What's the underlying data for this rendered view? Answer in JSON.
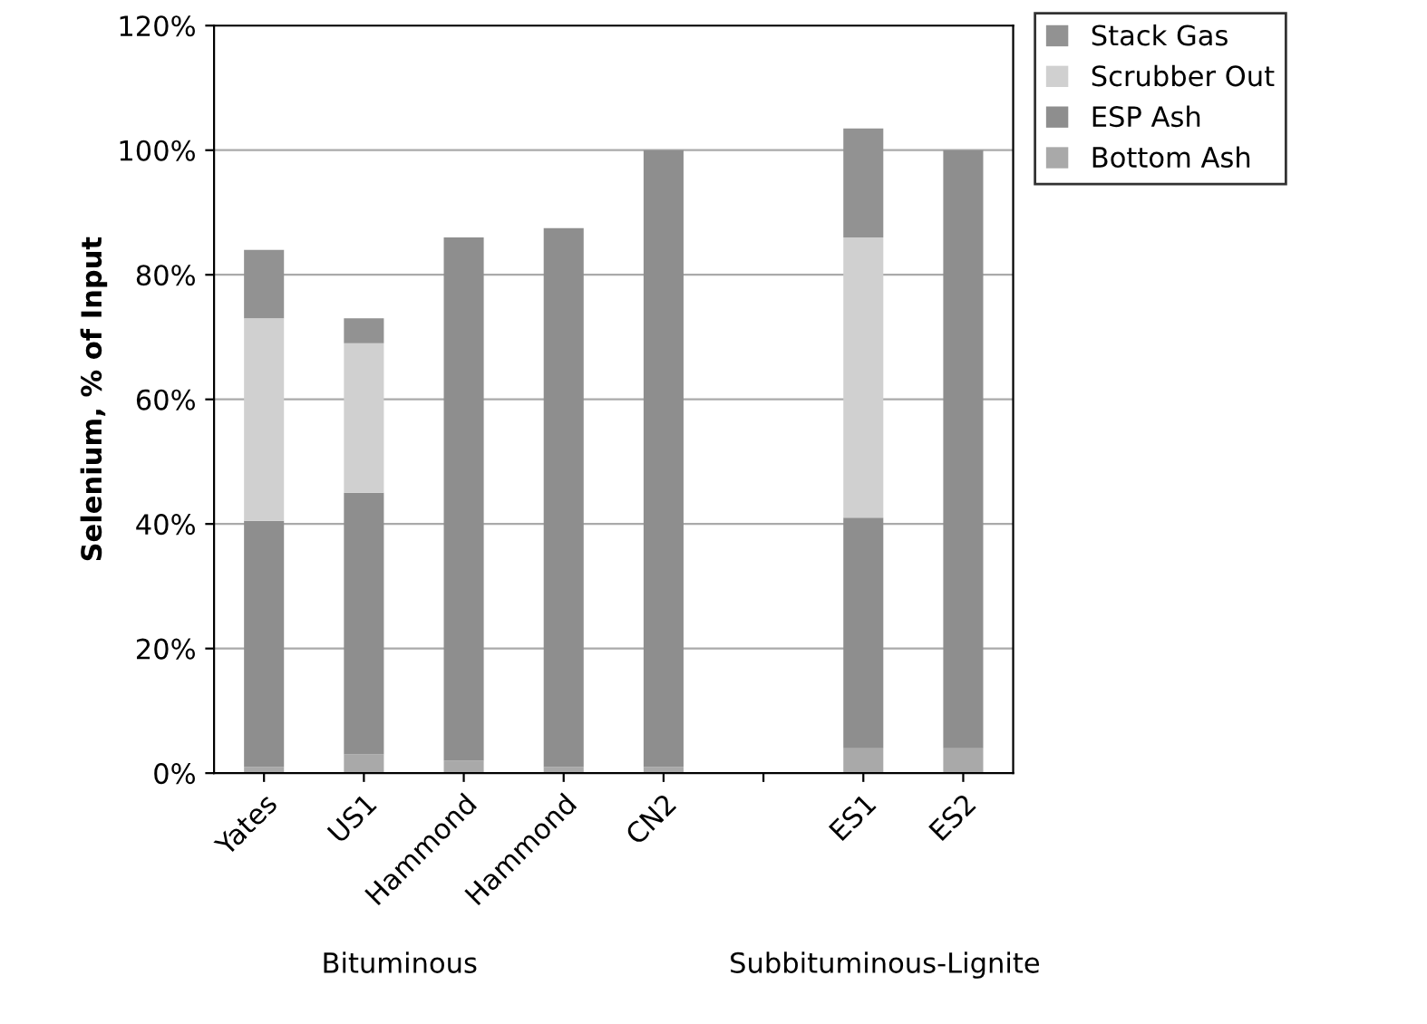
{
  "chart_data": {
    "type": "bar",
    "stacked": true,
    "ylabel": "Selenium, % of Input",
    "categories": [
      "Yates",
      "US1",
      "Hammond",
      "Hammond",
      "CN2",
      null,
      "ES1",
      "ES2"
    ],
    "series": [
      {
        "name": "Bottom Ash",
        "color": "#a9a9a9",
        "values": [
          1,
          3,
          2,
          1,
          1,
          null,
          4,
          4
        ]
      },
      {
        "name": "ESP Ash",
        "color": "#8e8e8e",
        "values": [
          39.5,
          42,
          84,
          86.5,
          99,
          null,
          37,
          96
        ]
      },
      {
        "name": "Scrubber Out",
        "color": "#d0d0d0",
        "values": [
          32.5,
          24,
          0,
          0,
          0,
          null,
          45,
          0
        ]
      },
      {
        "name": "Stack Gas",
        "color": "#929292",
        "values": [
          11,
          4,
          0,
          0,
          0,
          null,
          17.5,
          0
        ]
      }
    ],
    "ylim": [
      0,
      120
    ],
    "yticks": [
      {
        "value": 0,
        "label": "0%"
      },
      {
        "value": 20,
        "label": "20%"
      },
      {
        "value": 40,
        "label": "40%"
      },
      {
        "value": 60,
        "label": "60%"
      },
      {
        "value": 80,
        "label": "80%"
      },
      {
        "value": 100,
        "label": "100%"
      },
      {
        "value": 120,
        "label": "120%"
      }
    ],
    "grid": "y",
    "legend": "top right",
    "annotations": [
      "Bituminous",
      "Subbituminous-Lignite"
    ]
  }
}
